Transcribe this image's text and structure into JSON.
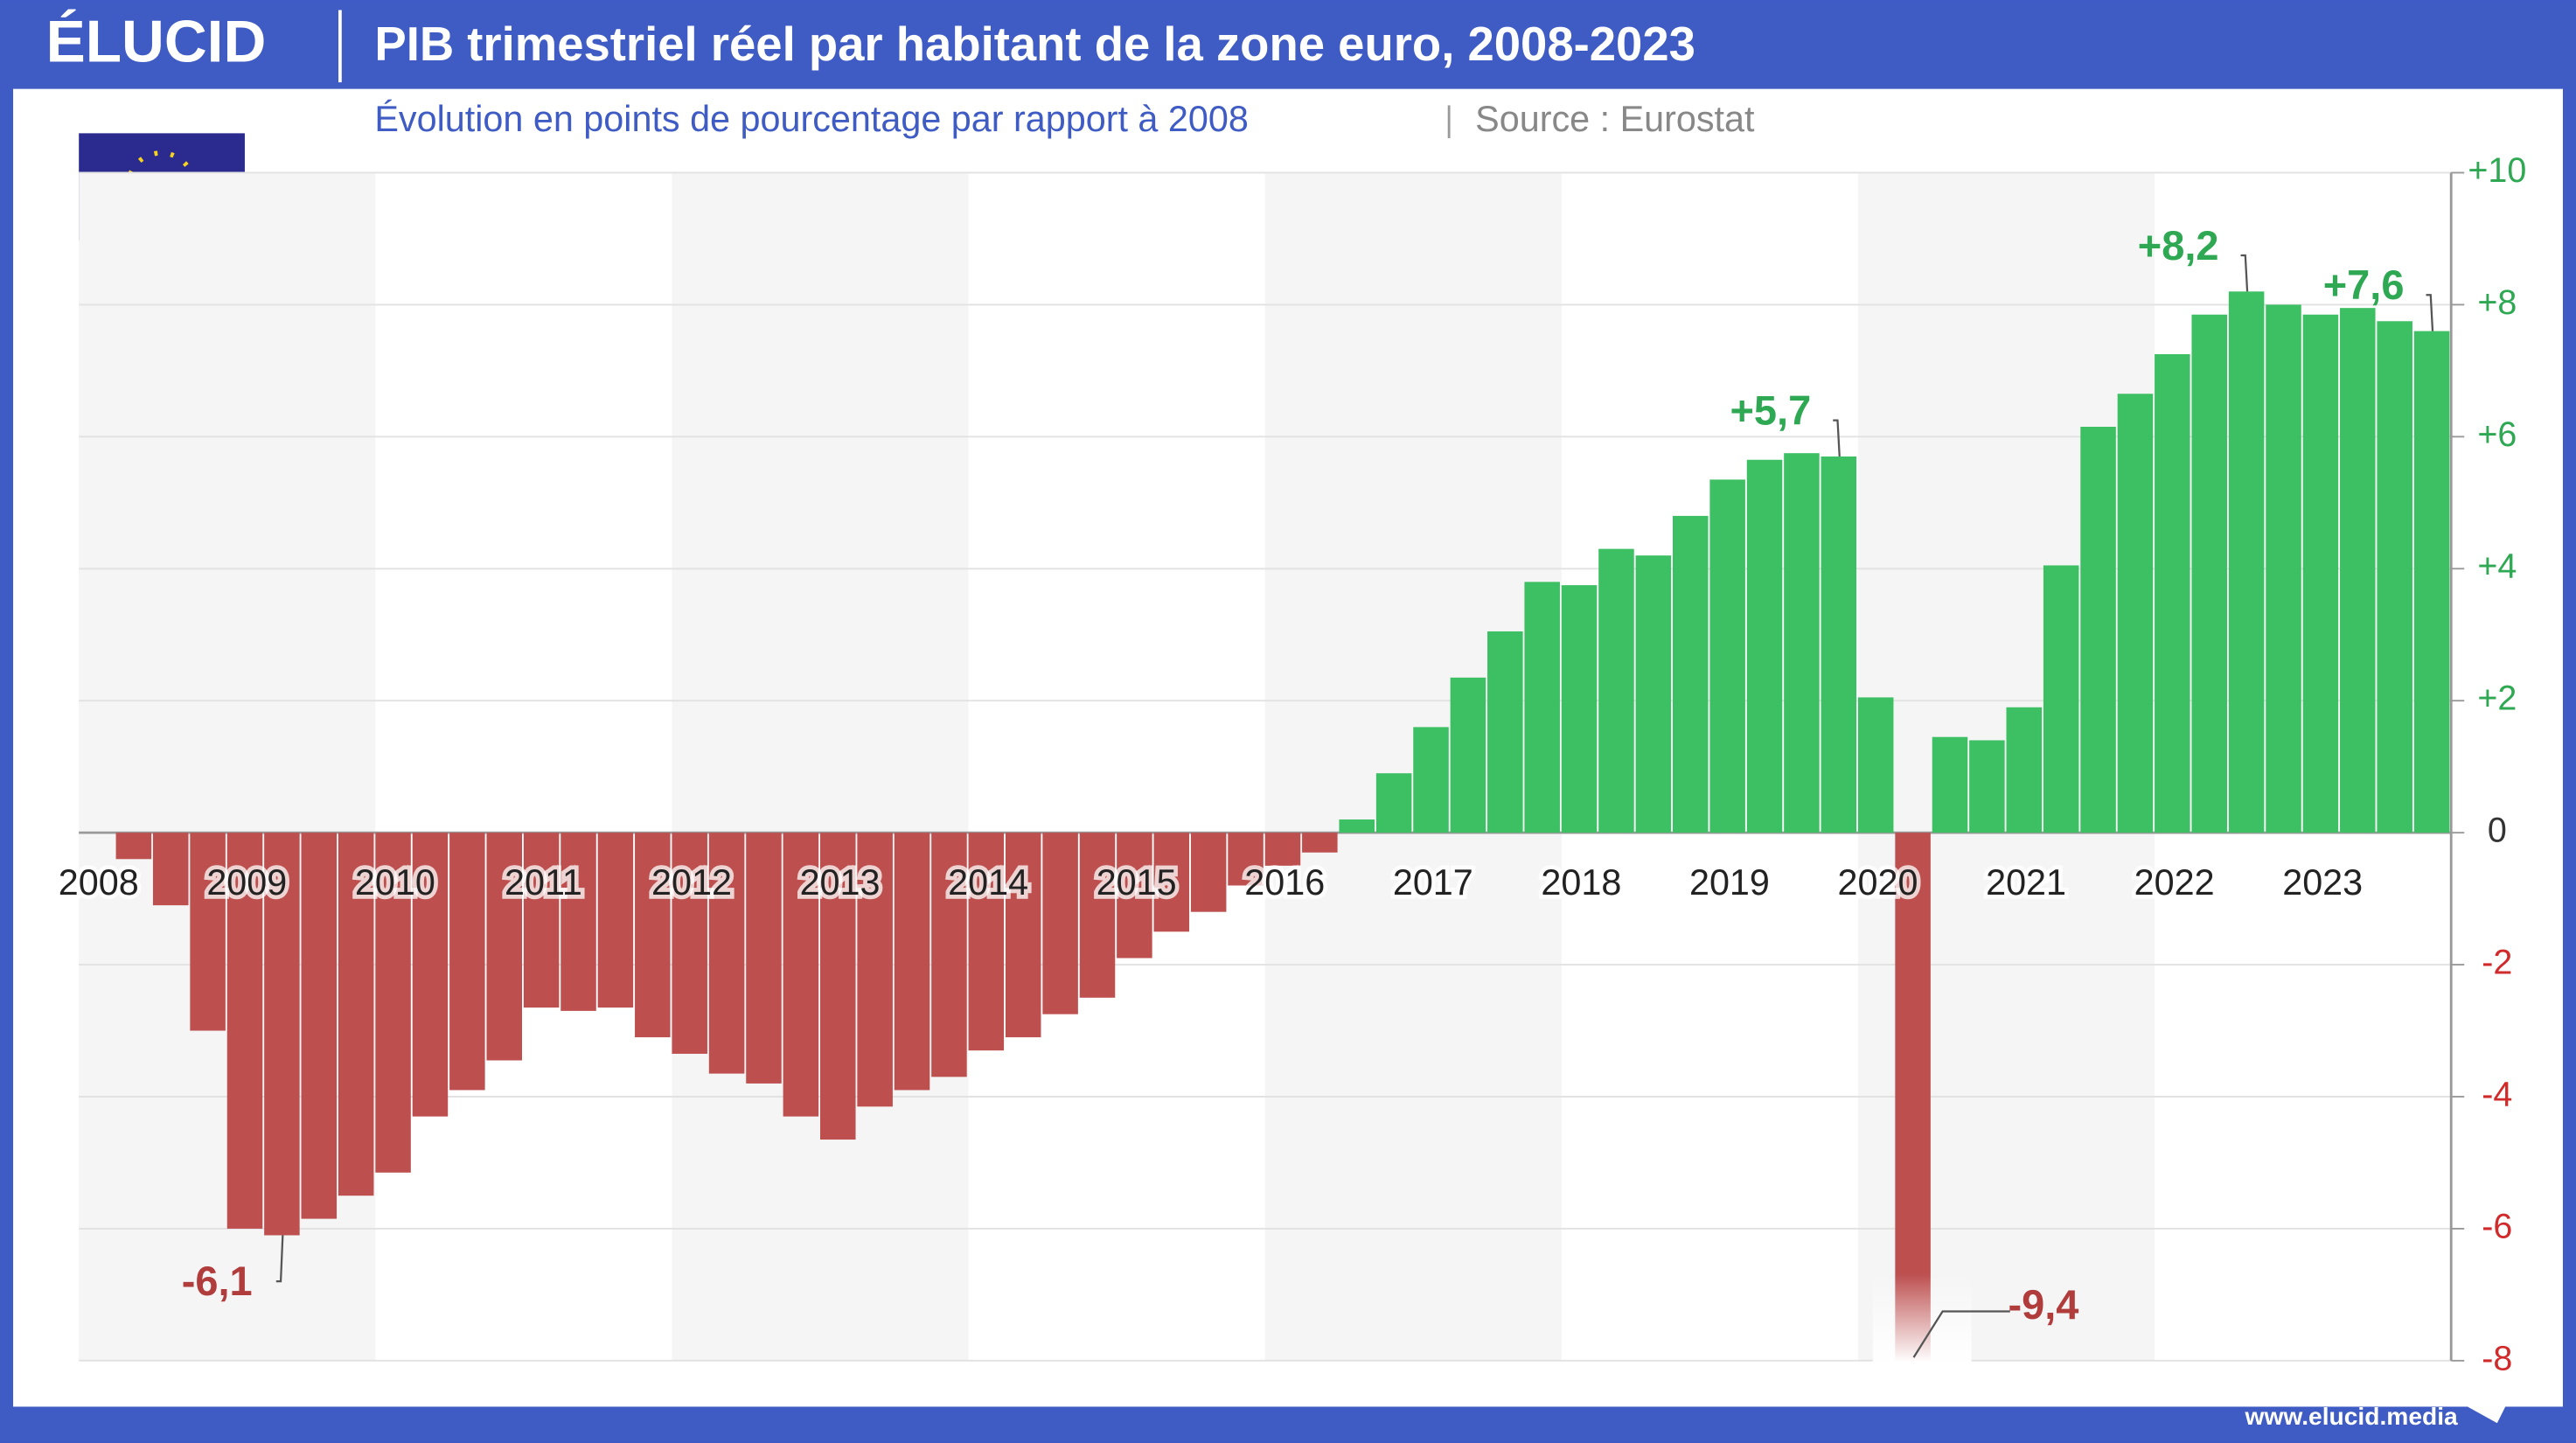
{
  "brand": "ÉLUCID",
  "footer": "www.elucid.media",
  "chart_data": {
    "type": "bar",
    "title": "PIB trimestriel réel par habitant de la zone euro, 2008-2023",
    "subtitle": "Évolution en points de pourcentage par rapport à 2008",
    "source": "Source : Eurostat",
    "categories": [
      "2008",
      null,
      null,
      null,
      "2009",
      null,
      null,
      null,
      "2010",
      null,
      null,
      null,
      "2011",
      null,
      null,
      null,
      "2012",
      null,
      null,
      null,
      "2013",
      null,
      null,
      null,
      "2014",
      null,
      null,
      null,
      "2015",
      null,
      null,
      null,
      "2016",
      null,
      null,
      null,
      "2017",
      null,
      null,
      null,
      "2018",
      null,
      null,
      null,
      "2019",
      null,
      null,
      null,
      "2020",
      null,
      null,
      null,
      "2021",
      null,
      null,
      null,
      "2022",
      null,
      null,
      null,
      "2023",
      null,
      null,
      null
    ],
    "values": [
      0,
      -0.4,
      -1.1,
      -3.0,
      -6.0,
      -6.1,
      -5.85,
      -5.5,
      -5.15,
      -4.3,
      -3.9,
      -3.45,
      -2.65,
      -2.7,
      -2.65,
      -3.1,
      -3.35,
      -3.65,
      -3.8,
      -4.3,
      -4.65,
      -4.15,
      -3.9,
      -3.7,
      -3.3,
      -3.1,
      -2.75,
      -2.5,
      -1.9,
      -1.5,
      -1.2,
      -0.8,
      -0.5,
      -0.3,
      0.2,
      0.9,
      1.6,
      2.35,
      3.05,
      3.8,
      3.75,
      4.3,
      4.2,
      4.8,
      5.35,
      5.65,
      5.75,
      5.7,
      2.05,
      -9.4,
      1.45,
      1.4,
      1.9,
      4.05,
      6.15,
      6.65,
      7.25,
      7.85,
      8.2,
      8.0,
      7.85,
      7.95,
      7.75,
      7.6
    ],
    "value_labels": [
      null,
      null,
      null,
      null,
      null,
      "-6,1",
      null,
      null,
      null,
      null,
      null,
      null,
      null,
      null,
      null,
      null,
      null,
      null,
      null,
      null,
      null,
      null,
      null,
      null,
      null,
      null,
      null,
      null,
      null,
      null,
      null,
      null,
      null,
      null,
      null,
      null,
      null,
      null,
      null,
      null,
      null,
      null,
      null,
      null,
      null,
      null,
      null,
      "+5,7",
      null,
      "-9,4",
      null,
      null,
      null,
      null,
      null,
      null,
      null,
      null,
      "+8,2",
      null,
      null,
      null,
      null,
      "+7,6"
    ],
    "positive_color": "#3dbf63",
    "negative_color": "#bd4f4f",
    "ylim": [
      -8,
      10
    ],
    "yticks": [
      -8,
      -6,
      -4,
      -2,
      0,
      {
        "value": 2,
        "label": "+2"
      },
      {
        "value": 4,
        "label": "+4"
      },
      {
        "value": 6,
        "label": "+6"
      },
      {
        "value": 8,
        "label": "+8"
      },
      {
        "value": 10,
        "label": "+10"
      }
    ],
    "grid": true
  }
}
